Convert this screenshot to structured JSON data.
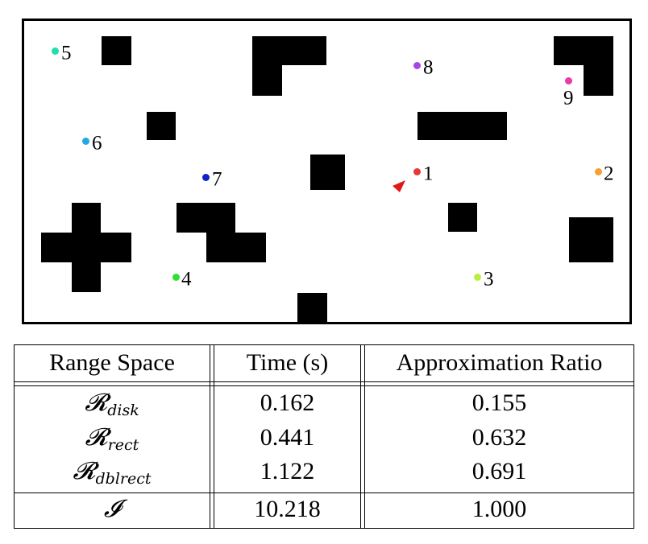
{
  "map": {
    "waypoints": [
      {
        "label": "1",
        "color": "#e53935"
      },
      {
        "label": "2",
        "color": "#f5a030"
      },
      {
        "label": "3",
        "color": "#b8f040"
      },
      {
        "label": "4",
        "color": "#33dd33"
      },
      {
        "label": "5",
        "color": "#22dda8"
      },
      {
        "label": "6",
        "color": "#22a8e8"
      },
      {
        "label": "7",
        "color": "#1122cc"
      },
      {
        "label": "8",
        "color": "#a844e8"
      },
      {
        "label": "9",
        "color": "#e83aa8"
      }
    ],
    "robot_color": "#e01818"
  },
  "table": {
    "headers": [
      "Range Space",
      "Time (s)",
      "Approximation Ratio"
    ],
    "rows": [
      {
        "range_symbol": "𝓡",
        "range_subscript": "disk",
        "time": "0.162",
        "ratio": "0.155"
      },
      {
        "range_symbol": "𝓡",
        "range_subscript": "rect",
        "time": "0.441",
        "ratio": "0.632"
      },
      {
        "range_symbol": "𝓡",
        "range_subscript": "dblrect",
        "time": "1.122",
        "ratio": "0.691"
      },
      {
        "range_symbol": "𝓘",
        "range_subscript": "",
        "time": "10.218",
        "ratio": "1.000"
      }
    ]
  }
}
